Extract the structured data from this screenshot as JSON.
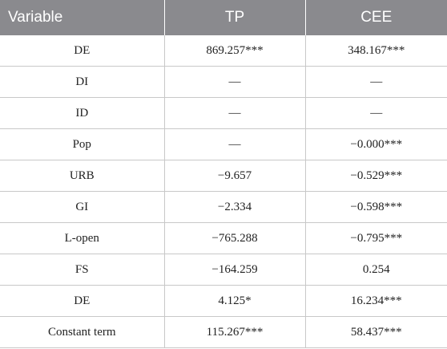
{
  "table": {
    "headers": [
      "Variable",
      "TP",
      "CEE"
    ],
    "rows": [
      [
        "DE",
        "869.257***",
        "348.167***"
      ],
      [
        "DI",
        "—",
        "—"
      ],
      [
        "ID",
        "—",
        "—"
      ],
      [
        "Pop",
        "—",
        "−0.000***"
      ],
      [
        "URB",
        "−9.657",
        "−0.529***"
      ],
      [
        "GI",
        "−2.334",
        "−0.598***"
      ],
      [
        "L-open",
        "−765.288",
        "−0.795***"
      ],
      [
        "FS",
        "−164.259",
        "0.254"
      ],
      [
        "DE",
        "4.125*",
        "16.234***"
      ],
      [
        "Constant term",
        "115.267***",
        "58.437***"
      ]
    ]
  },
  "colors": {
    "header_background": "#8a8a8e",
    "header_text": "#ffffff",
    "grid_line": "#c8c8c8"
  }
}
